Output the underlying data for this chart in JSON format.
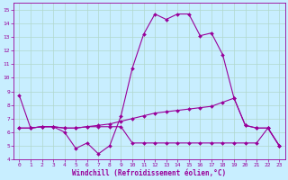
{
  "line1": {
    "x": [
      0,
      1,
      2,
      3,
      4,
      5,
      6,
      7,
      8,
      9,
      10,
      11,
      12,
      13,
      14,
      15,
      16,
      17,
      18,
      19,
      20,
      21,
      22,
      23
    ],
    "y": [
      8.7,
      6.3,
      6.4,
      6.4,
      6.0,
      4.8,
      5.2,
      4.4,
      5.0,
      7.2,
      10.7,
      13.2,
      14.7,
      14.3,
      14.7,
      14.7,
      13.1,
      13.3,
      11.7,
      8.5,
      6.5,
      6.3,
      6.3,
      5.0
    ]
  },
  "line2": {
    "x": [
      0,
      1,
      2,
      3,
      4,
      5,
      6,
      7,
      8,
      9,
      10,
      11,
      12,
      13,
      14,
      15,
      16,
      17,
      18,
      19,
      20,
      21,
      22,
      23
    ],
    "y": [
      6.3,
      6.3,
      6.4,
      6.4,
      6.3,
      6.3,
      6.4,
      6.5,
      6.6,
      6.8,
      7.0,
      7.2,
      7.4,
      7.5,
      7.6,
      7.7,
      7.8,
      7.9,
      8.2,
      8.5,
      6.5,
      6.3,
      6.3,
      5.0
    ]
  },
  "line3": {
    "x": [
      0,
      1,
      2,
      3,
      4,
      5,
      6,
      7,
      8,
      9,
      10,
      11,
      12,
      13,
      14,
      15,
      16,
      17,
      18,
      19,
      20,
      21,
      22,
      23
    ],
    "y": [
      6.3,
      6.3,
      6.4,
      6.4,
      6.3,
      6.3,
      6.4,
      6.4,
      6.4,
      6.4,
      5.2,
      5.2,
      5.2,
      5.2,
      5.2,
      5.2,
      5.2,
      5.2,
      5.2,
      5.2,
      5.2,
      5.2,
      6.3,
      5.0
    ]
  },
  "color": "#990099",
  "bg_color": "#c8eeff",
  "grid_color": "#b0d8cc",
  "xlabel": "Windchill (Refroidissement éolien,°C)",
  "ylim": [
    4,
    15.5
  ],
  "xlim": [
    -0.5,
    23.5
  ],
  "yticks": [
    4,
    5,
    6,
    7,
    8,
    9,
    10,
    11,
    12,
    13,
    14,
    15
  ],
  "xticks": [
    0,
    1,
    2,
    3,
    4,
    5,
    6,
    7,
    8,
    9,
    10,
    11,
    12,
    13,
    14,
    15,
    16,
    17,
    18,
    19,
    20,
    21,
    22,
    23
  ],
  "xlabel_fontsize": 5.5,
  "tick_fontsize": 4.5,
  "linewidth": 0.8,
  "markersize": 2.0
}
